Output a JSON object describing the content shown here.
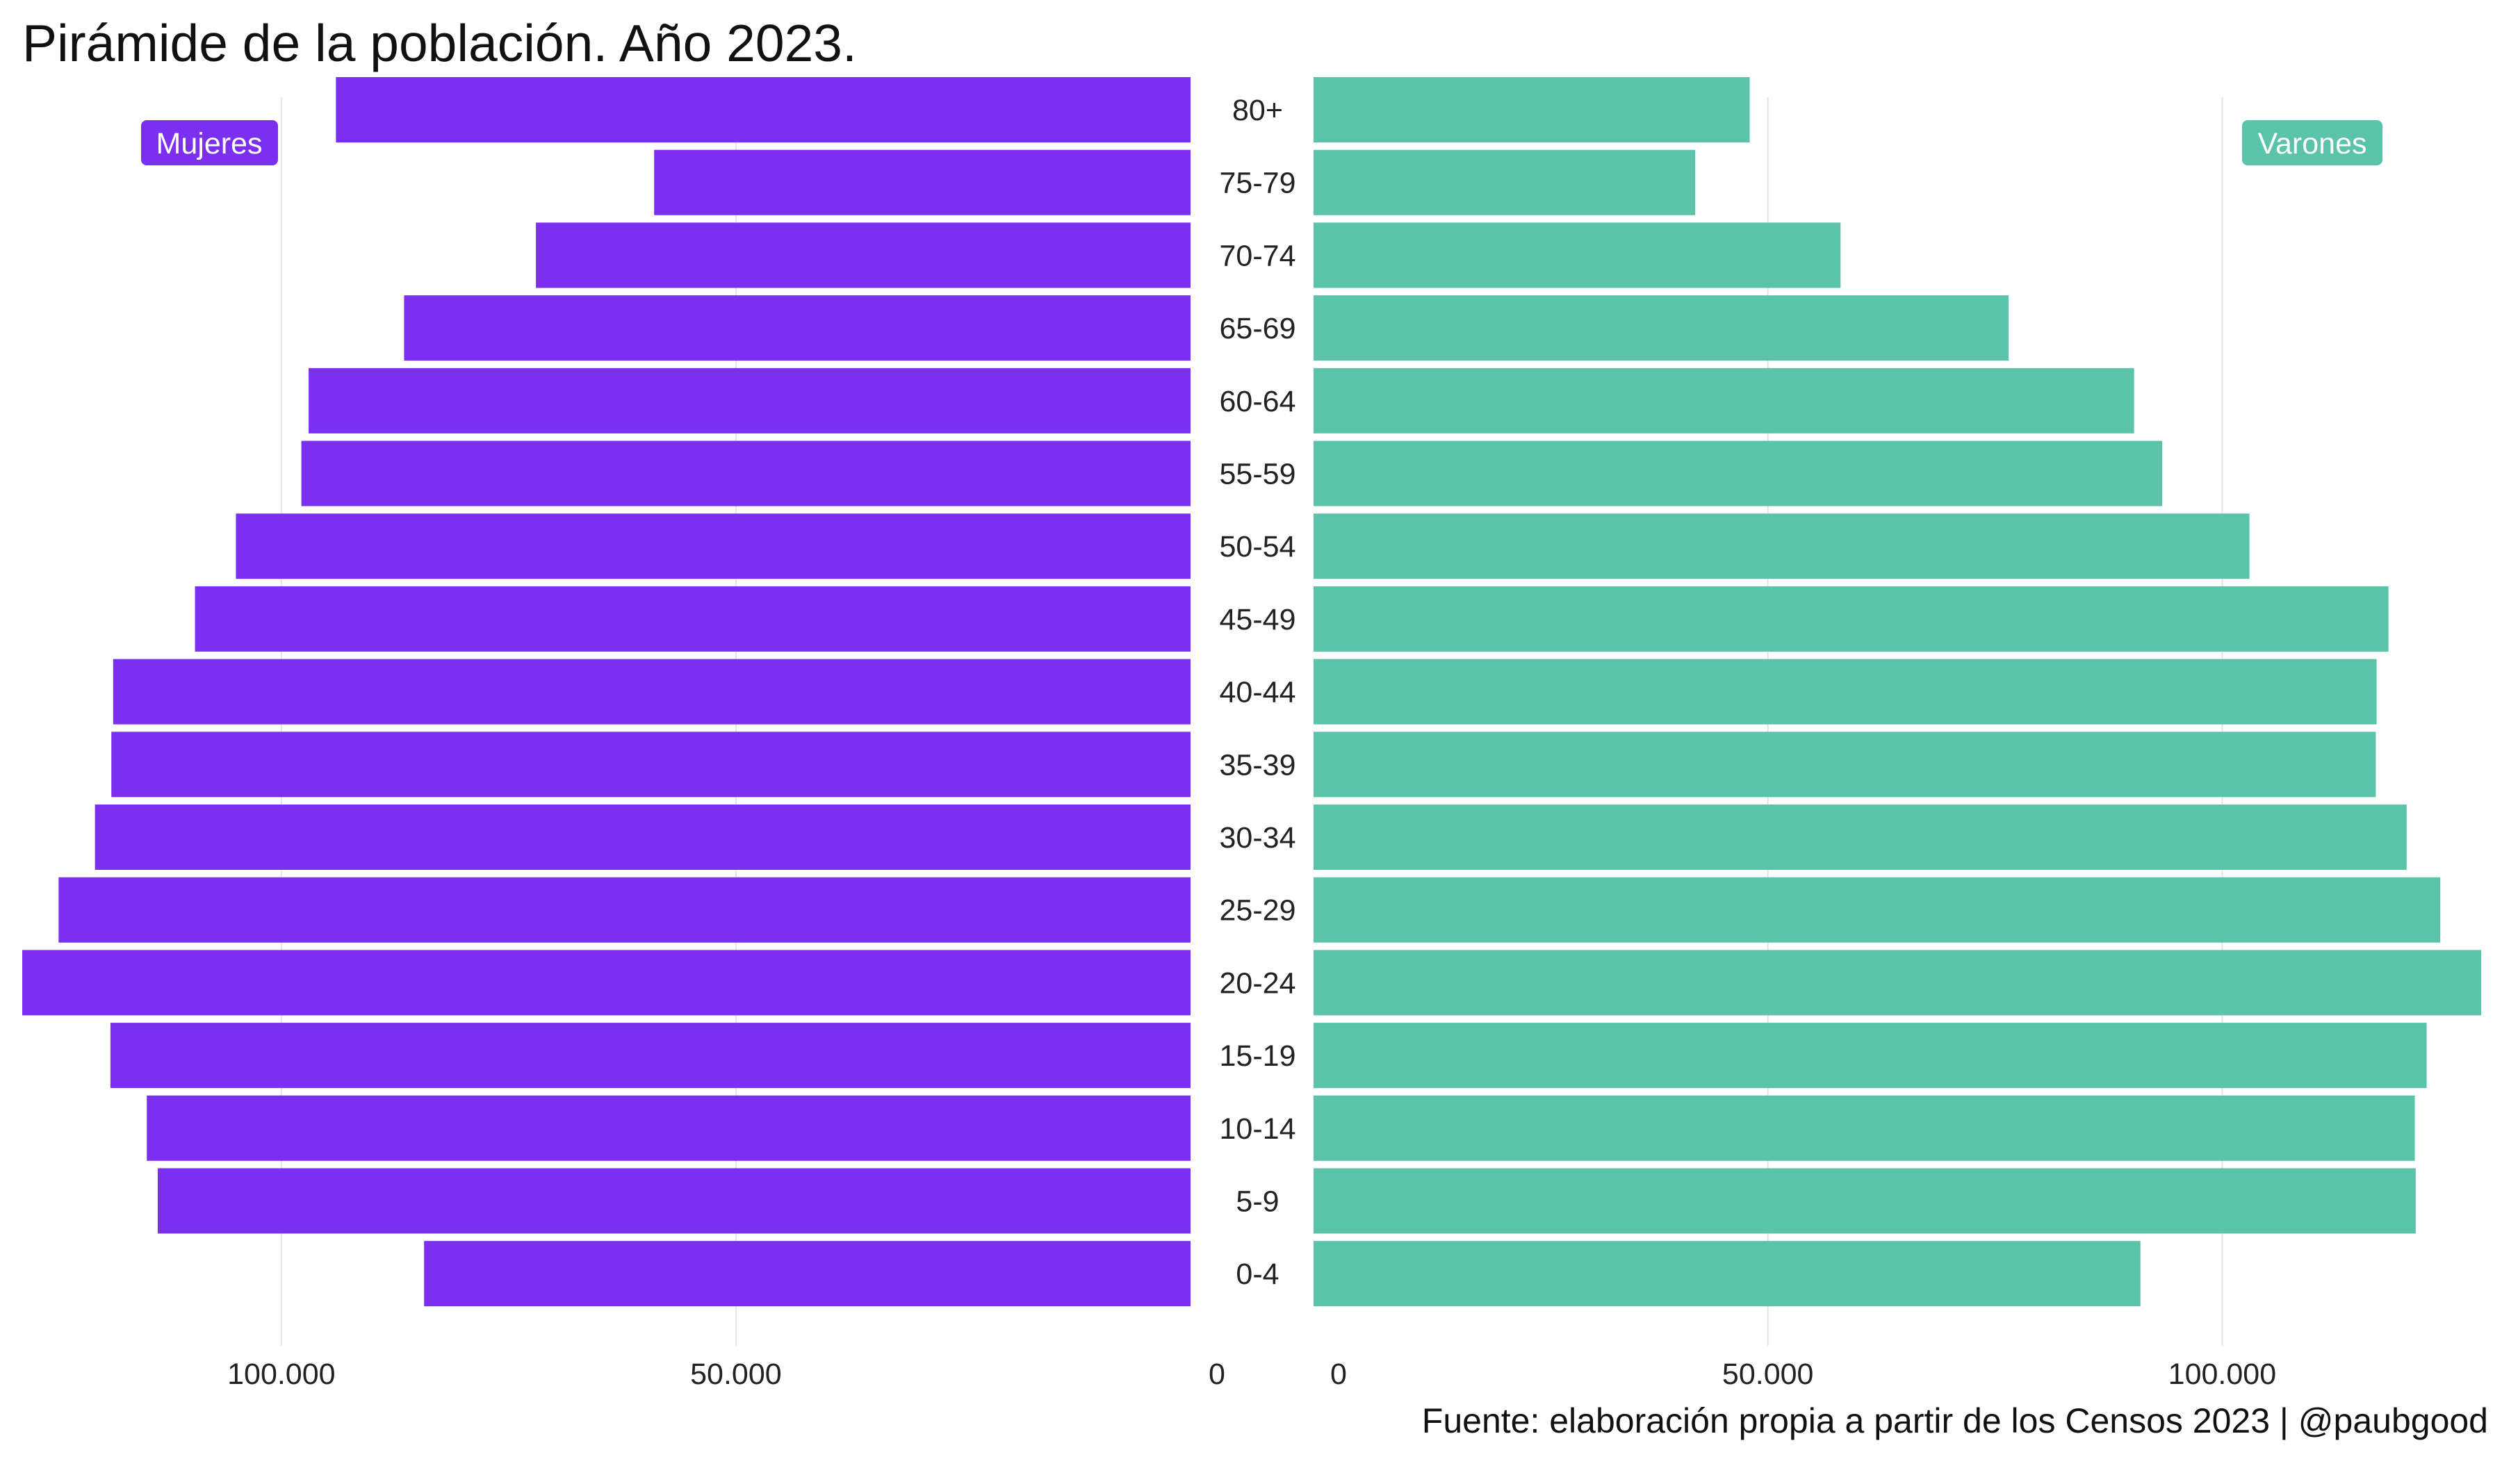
{
  "chart_data": {
    "type": "bar",
    "orientation": "horizontal-pyramid",
    "title": "Pirámide de la población. Año 2023.",
    "caption": "Fuente: elaboración propia a partir de los Censos 2023 | @paubgood",
    "categories": [
      "80+",
      "75-79",
      "70-74",
      "65-69",
      "60-64",
      "55-59",
      "50-54",
      "45-49",
      "40-44",
      "35-39",
      "30-34",
      "25-29",
      "20-24",
      "15-19",
      "10-14",
      "5-9",
      "0-4"
    ],
    "series": [
      {
        "name": "Mujeres",
        "side": "left",
        "color": "#7b2ff0",
        "values": [
          94000,
          59000,
          72000,
          86500,
          97000,
          97800,
          105000,
          109500,
          118500,
          118700,
          120500,
          124500,
          128500,
          118800,
          114800,
          113600,
          84300
        ]
      },
      {
        "name": "Varones",
        "side": "right",
        "color": "#5ac3a9",
        "values": [
          48000,
          42000,
          58000,
          76500,
          90300,
          93400,
          103000,
          118300,
          117000,
          116900,
          120300,
          124000,
          128500,
          122500,
          121200,
          121300,
          91000
        ]
      }
    ],
    "left_axis": {
      "ticks": [
        100000,
        50000,
        0
      ],
      "tick_labels": [
        "100.000",
        "50.000",
        "0"
      ],
      "range": [
        0,
        128500
      ],
      "reversed": true
    },
    "right_axis": {
      "ticks": [
        0,
        50000,
        100000
      ],
      "tick_labels": [
        "0",
        "50.000",
        "100.000"
      ],
      "range": [
        0,
        128500
      ]
    },
    "grid": true,
    "legend": [
      {
        "label": "Mujeres",
        "position": "top-left"
      },
      {
        "label": "Varones",
        "position": "top-right"
      }
    ]
  }
}
